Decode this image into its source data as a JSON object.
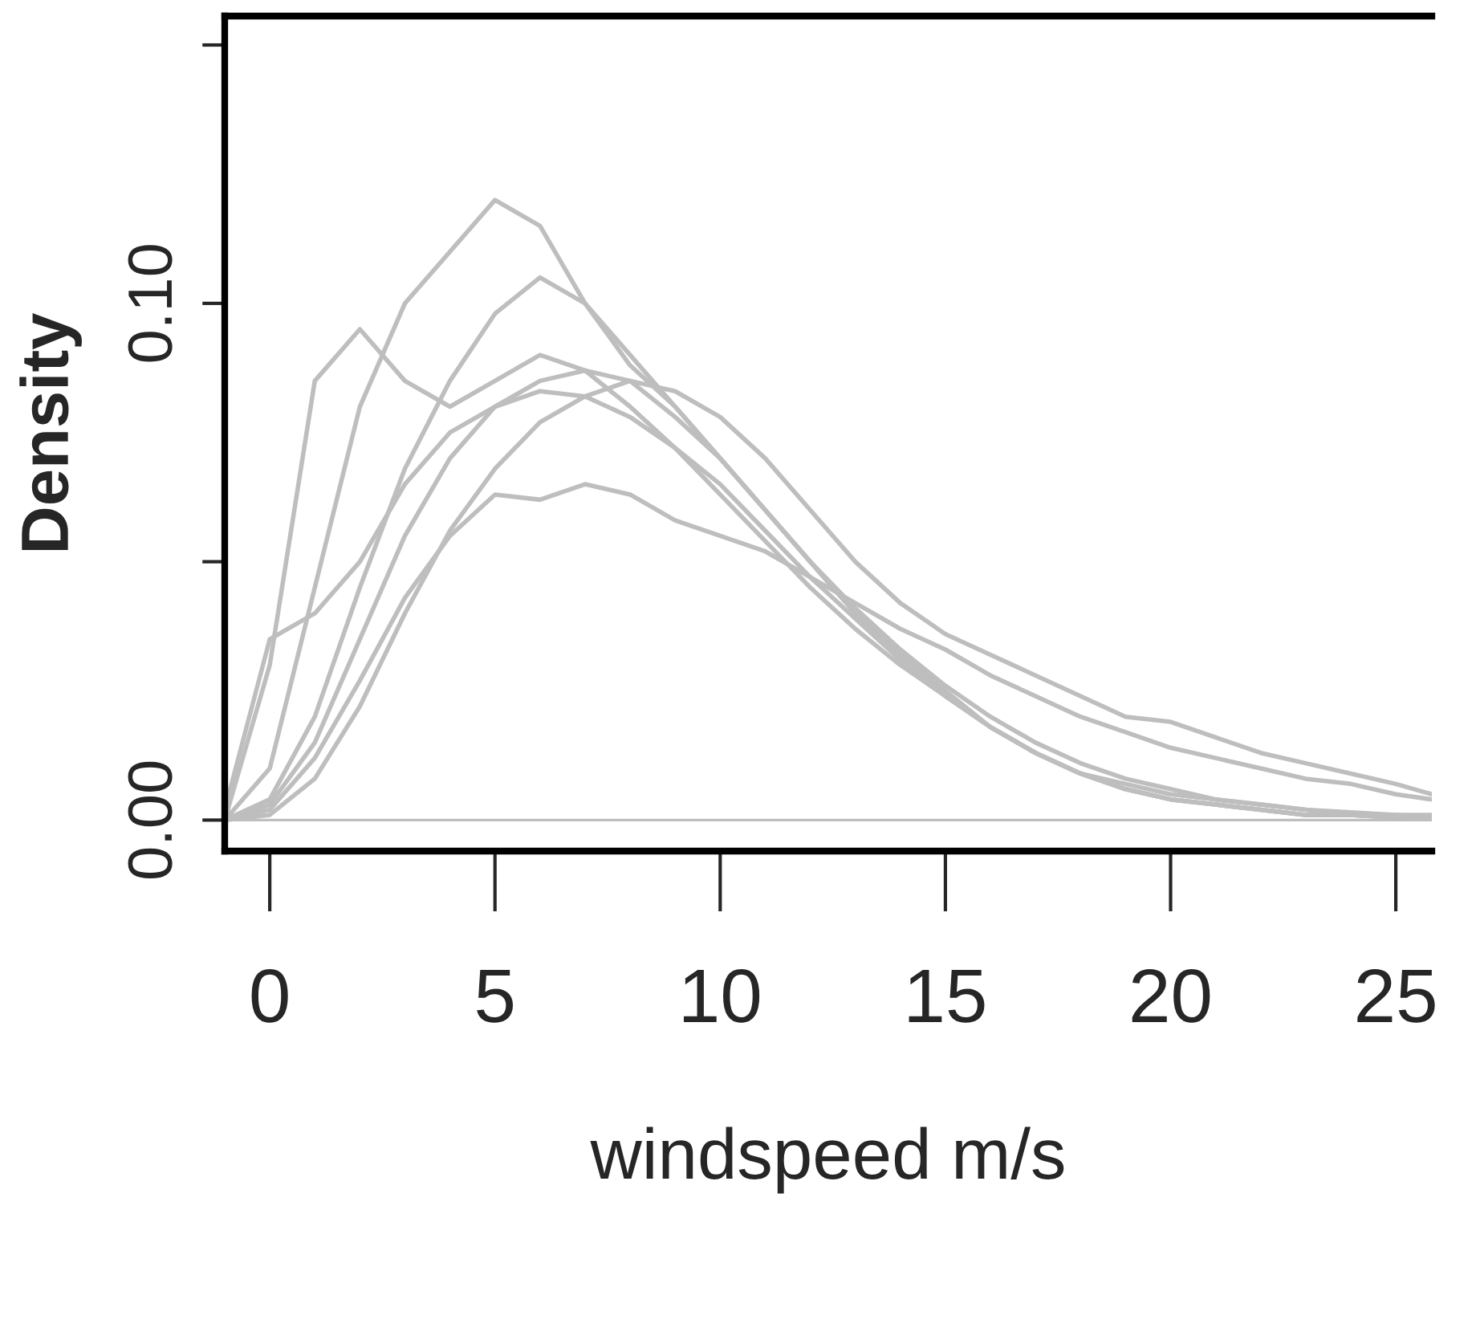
{
  "chart_data": {
    "type": "line",
    "xlabel": "windspeed m/s",
    "ylabel": "Density",
    "x": [
      -1,
      0,
      1,
      2,
      3,
      4,
      5,
      6,
      7,
      8,
      9,
      10,
      11,
      12,
      13,
      14,
      15,
      16,
      17,
      18,
      19,
      20,
      21,
      22,
      23,
      24,
      25,
      25.8
    ],
    "series": [
      {
        "color": "#bebebe",
        "values": [
          0,
          0.01,
          0.045,
          0.08,
          0.1,
          0.11,
          0.12,
          0.115,
          0.1,
          0.088,
          0.08,
          0.07,
          0.06,
          0.05,
          0.04,
          0.032,
          0.025,
          0.018,
          0.013,
          0.009,
          0.006,
          0.004,
          0.003,
          0.002,
          0.001,
          0.001,
          0.0005,
          0.0003
        ]
      },
      {
        "color": "#bebebe",
        "values": [
          0,
          0.03,
          0.085,
          0.095,
          0.085,
          0.08,
          0.085,
          0.09,
          0.087,
          0.08,
          0.072,
          0.063,
          0.054,
          0.045,
          0.037,
          0.03,
          0.024,
          0.018,
          0.013,
          0.009,
          0.007,
          0.005,
          0.004,
          0.003,
          0.002,
          0.001,
          0.001,
          0.0005
        ]
      },
      {
        "color": "#bebebe",
        "values": [
          0,
          0.002,
          0.012,
          0.027,
          0.043,
          0.055,
          0.063,
          0.062,
          0.065,
          0.063,
          0.058,
          0.055,
          0.052,
          0.047,
          0.042,
          0.037,
          0.033,
          0.028,
          0.024,
          0.02,
          0.017,
          0.014,
          0.012,
          0.01,
          0.008,
          0.007,
          0.005,
          0.004
        ]
      },
      {
        "color": "#bebebe",
        "values": [
          0,
          0.003,
          0.015,
          0.035,
          0.055,
          0.07,
          0.08,
          0.085,
          0.087,
          0.085,
          0.078,
          0.07,
          0.06,
          0.05,
          0.041,
          0.033,
          0.026,
          0.02,
          0.015,
          0.011,
          0.008,
          0.006,
          0.004,
          0.003,
          0.002,
          0.0015,
          0.001,
          0.001
        ]
      },
      {
        "color": "#bebebe",
        "values": [
          0,
          0.001,
          0.008,
          0.022,
          0.04,
          0.056,
          0.068,
          0.077,
          0.082,
          0.085,
          0.083,
          0.078,
          0.07,
          0.06,
          0.05,
          0.042,
          0.036,
          0.032,
          0.028,
          0.024,
          0.02,
          0.019,
          0.016,
          0.013,
          0.011,
          0.009,
          0.007,
          0.005
        ]
      },
      {
        "color": "#bebebe",
        "values": [
          0.002,
          0.035,
          0.04,
          0.05,
          0.065,
          0.075,
          0.08,
          0.083,
          0.082,
          0.078,
          0.072,
          0.065,
          0.056,
          0.047,
          0.039,
          0.031,
          0.024,
          0.018,
          0.013,
          0.009,
          0.006,
          0.004,
          0.003,
          0.002,
          0.001,
          0.001,
          0.0005,
          0.0003
        ]
      },
      {
        "color": "#bebebe",
        "values": [
          0,
          0.004,
          0.02,
          0.045,
          0.068,
          0.085,
          0.098,
          0.105,
          0.1,
          0.09,
          0.08,
          0.07,
          0.06,
          0.05,
          0.04,
          0.031,
          0.024,
          0.018,
          0.013,
          0.009,
          0.006,
          0.004,
          0.003,
          0.002,
          0.001,
          0.001,
          0.0005,
          0.0003
        ]
      }
    ],
    "ref_lines": [
      {
        "axis": "y",
        "value": 0,
        "label": null,
        "color": "#bebebe"
      }
    ],
    "xlim": [
      -1,
      25.8
    ],
    "ylim": [
      -0.006,
      0.1556
    ],
    "xticks": [
      0,
      5,
      10,
      15,
      20,
      25
    ],
    "yticks": [
      {
        "value": 0,
        "label": "0.00"
      },
      {
        "value": 0.05,
        "label": null
      },
      {
        "value": 0.1,
        "label": "0.10"
      },
      {
        "value": 0.15,
        "label": null
      }
    ],
    "grid": false,
    "legend": false,
    "marker": "none",
    "line_style": "solid"
  }
}
